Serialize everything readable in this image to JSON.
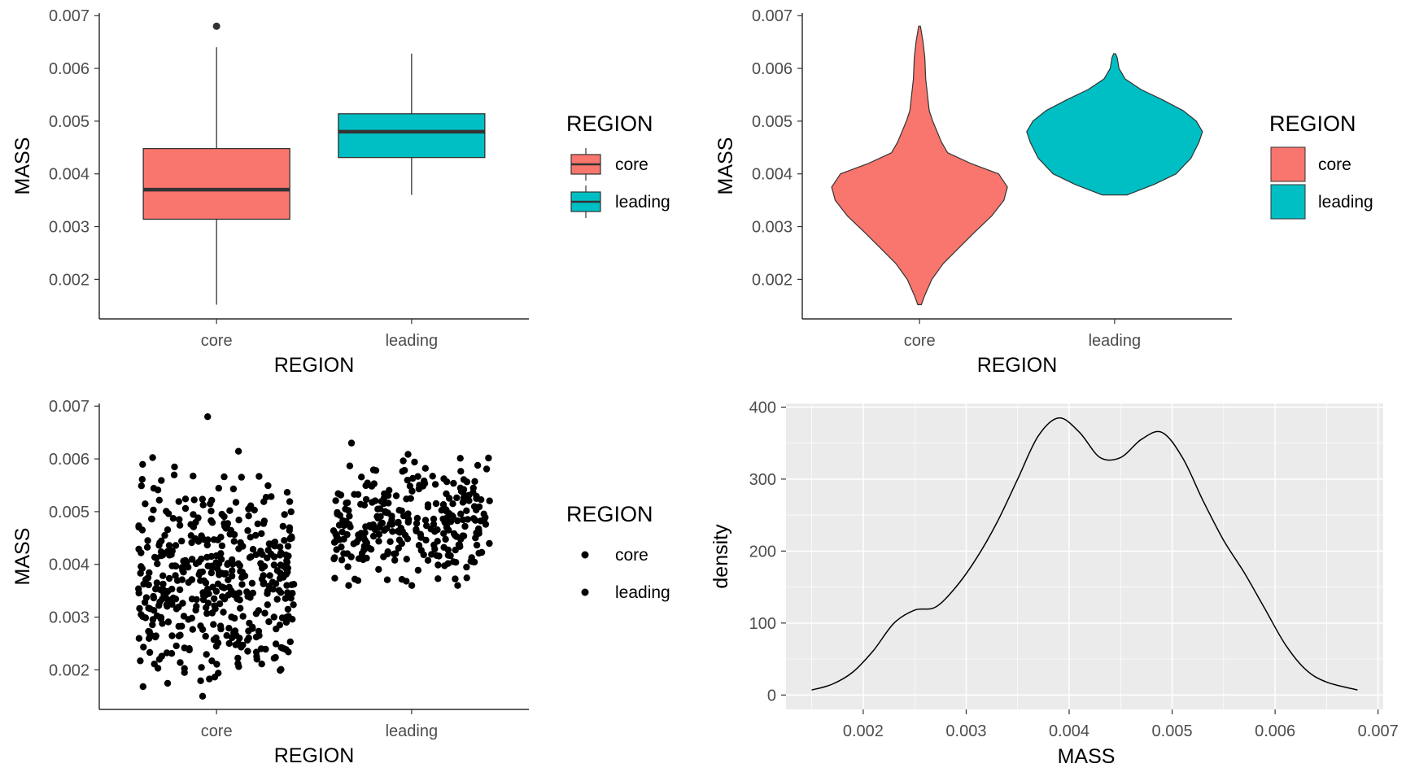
{
  "colors": {
    "core": "#F8766D",
    "leading": "#00BFC4",
    "median": "#333333",
    "point": "#000000",
    "panel_bg": "#EBEBEB",
    "grid": "#FFFFFF"
  },
  "chart_data": [
    {
      "type": "box",
      "xlabel": "REGION",
      "ylabel": "MASS",
      "categories": [
        "core",
        "leading"
      ],
      "ylim": [
        0.00125,
        0.00705
      ],
      "yticks": [
        "0.002",
        "0.003",
        "0.004",
        "0.005",
        "0.006",
        "0.007"
      ],
      "legend": {
        "title": "REGION",
        "entries": [
          "core",
          "leading"
        ],
        "position": "right"
      },
      "boxes": [
        {
          "category": "core",
          "min": 0.00152,
          "q1": 0.00314,
          "median": 0.0037,
          "q3": 0.00448,
          "max": 0.0064,
          "outliers": [
            0.0068
          ]
        },
        {
          "category": "leading",
          "min": 0.0036,
          "q1": 0.00431,
          "median": 0.0048,
          "q3": 0.00514,
          "max": 0.00628,
          "outliers": []
        }
      ]
    },
    {
      "type": "violin",
      "xlabel": "REGION",
      "ylabel": "MASS",
      "categories": [
        "core",
        "leading"
      ],
      "ylim": [
        0.00125,
        0.00705
      ],
      "yticks": [
        "0.002",
        "0.003",
        "0.004",
        "0.005",
        "0.006",
        "0.007"
      ],
      "legend": {
        "title": "REGION",
        "entries": [
          "core",
          "leading"
        ],
        "position": "right"
      },
      "violins": [
        {
          "category": "core",
          "profile": [
            [
              0.00152,
              0.02
            ],
            [
              0.0017,
              0.06
            ],
            [
              0.002,
              0.14
            ],
            [
              0.0023,
              0.27
            ],
            [
              0.0026,
              0.45
            ],
            [
              0.0029,
              0.63
            ],
            [
              0.0032,
              0.82
            ],
            [
              0.0035,
              0.96
            ],
            [
              0.00375,
              1.0
            ],
            [
              0.004,
              0.9
            ],
            [
              0.0042,
              0.58
            ],
            [
              0.0044,
              0.32
            ],
            [
              0.0046,
              0.25
            ],
            [
              0.0048,
              0.2
            ],
            [
              0.005,
              0.15
            ],
            [
              0.0052,
              0.11
            ],
            [
              0.0055,
              0.09
            ],
            [
              0.0058,
              0.07
            ],
            [
              0.0062,
              0.06
            ],
            [
              0.0065,
              0.04
            ],
            [
              0.0068,
              0.01
            ]
          ]
        },
        {
          "category": "leading",
          "profile": [
            [
              0.0036,
              0.14
            ],
            [
              0.0038,
              0.45
            ],
            [
              0.004,
              0.7
            ],
            [
              0.0043,
              0.87
            ],
            [
              0.0046,
              0.96
            ],
            [
              0.0048,
              1.0
            ],
            [
              0.005,
              0.93
            ],
            [
              0.0052,
              0.78
            ],
            [
              0.0054,
              0.55
            ],
            [
              0.0056,
              0.3
            ],
            [
              0.0058,
              0.12
            ],
            [
              0.006,
              0.05
            ],
            [
              0.0062,
              0.03
            ],
            [
              0.00628,
              0.01
            ]
          ]
        }
      ]
    },
    {
      "type": "scatter",
      "xlabel": "REGION",
      "ylabel": "MASS",
      "categories": [
        "core",
        "leading"
      ],
      "ylim": [
        0.00125,
        0.00705
      ],
      "yticks": [
        "0.002",
        "0.003",
        "0.004",
        "0.005",
        "0.006",
        "0.007"
      ],
      "legend": {
        "title": "REGION",
        "entries": [
          "core",
          "leading"
        ],
        "position": "right"
      },
      "jitter": true,
      "series": [
        {
          "category": "core",
          "y_range": [
            0.0015,
            0.0068
          ],
          "n": 460,
          "mean": 0.0038,
          "sd": 0.0009
        },
        {
          "category": "leading",
          "y_range": [
            0.0036,
            0.0063
          ],
          "n": 300,
          "mean": 0.0048,
          "sd": 0.0005
        }
      ]
    },
    {
      "type": "line",
      "xlabel": "MASS",
      "ylabel": "density",
      "xlim": [
        0.00125,
        0.00705
      ],
      "ylim": [
        -20,
        405
      ],
      "xticks": [
        "0.002",
        "0.003",
        "0.004",
        "0.005",
        "0.006",
        "0.007"
      ],
      "yticks": [
        "0",
        "100",
        "200",
        "300",
        "400"
      ],
      "grid": true,
      "x": [
        0.0015,
        0.0017,
        0.0019,
        0.0021,
        0.0023,
        0.0025,
        0.0027,
        0.0029,
        0.0031,
        0.0033,
        0.0035,
        0.0037,
        0.0039,
        0.0041,
        0.0043,
        0.0045,
        0.0047,
        0.0049,
        0.0051,
        0.0053,
        0.0055,
        0.0057,
        0.0059,
        0.0061,
        0.0063,
        0.0065,
        0.0068
      ],
      "y": [
        7,
        15,
        32,
        62,
        100,
        118,
        122,
        150,
        190,
        240,
        300,
        360,
        385,
        365,
        330,
        330,
        355,
        365,
        330,
        270,
        215,
        170,
        120,
        70,
        35,
        18,
        7
      ]
    }
  ]
}
